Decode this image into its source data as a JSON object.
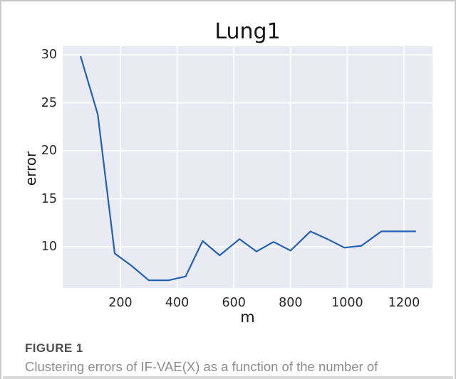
{
  "caption": {
    "label": "FIGURE 1",
    "text": "Clustering errors of IF-VAE(X) as a function of the number of"
  },
  "chart_data": {
    "type": "line",
    "title": "Lung1",
    "xlabel": "m",
    "ylabel": "error",
    "x": [
      60,
      120,
      180,
      240,
      300,
      370,
      430,
      490,
      550,
      620,
      680,
      740,
      800,
      870,
      930,
      990,
      1050,
      1120,
      1180,
      1240
    ],
    "y": [
      29.8,
      23.8,
      9.3,
      8.0,
      6.5,
      6.5,
      6.9,
      10.6,
      9.1,
      10.8,
      9.5,
      10.5,
      9.6,
      11.6,
      10.8,
      9.9,
      10.1,
      11.6,
      11.6,
      11.6
    ],
    "xticks": [
      200,
      400,
      600,
      800,
      1000,
      1200
    ],
    "yticks": [
      10,
      15,
      20,
      25,
      30
    ],
    "xlim": [
      -3.5,
      1300.5
    ],
    "ylim": [
      5.7,
      30.9
    ],
    "grid": true,
    "legend": null,
    "line_color": "#2162b4",
    "line_width": 2.2,
    "plot_bg": "#eaeaf2",
    "grid_color": "#ffffff"
  }
}
